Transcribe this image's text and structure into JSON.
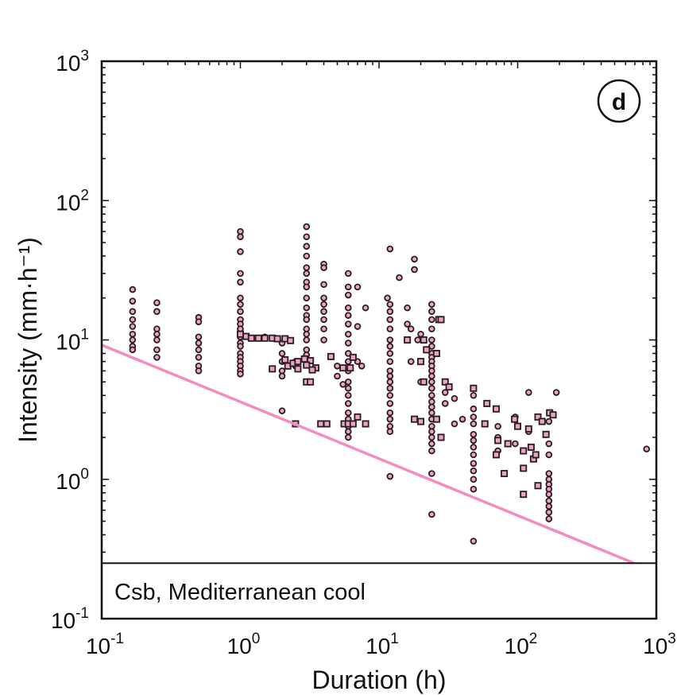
{
  "chart_data": {
    "type": "scatter",
    "x_scale": "log",
    "y_scale": "log",
    "xlim": [
      0.1,
      1000
    ],
    "ylim": [
      0.1,
      1000
    ],
    "xlabel": "Duration (h)",
    "ylabel": "Intensity (mm·h⁻¹)",
    "x_ticks": [
      {
        "value": 0.1,
        "base": "10",
        "exp": "-1"
      },
      {
        "value": 1,
        "base": "10",
        "exp": "0"
      },
      {
        "value": 10,
        "base": "10",
        "exp": "1"
      },
      {
        "value": 100,
        "base": "10",
        "exp": "2"
      },
      {
        "value": 1000,
        "base": "10",
        "exp": "3"
      }
    ],
    "y_ticks": [
      {
        "value": 0.1,
        "base": "10",
        "exp": "-1"
      },
      {
        "value": 1,
        "base": "10",
        "exp": "0"
      },
      {
        "value": 10,
        "base": "10",
        "exp": "1"
      },
      {
        "value": 100,
        "base": "10",
        "exp": "2"
      },
      {
        "value": 1000,
        "base": "10",
        "exp": "3"
      }
    ],
    "panel_label": "d",
    "inset_label": "Csb, Mediterranean cool",
    "inset_floor_y": 0.25,
    "threshold_line": {
      "color": "#f48cc0",
      "points": [
        [
          0.1,
          9.2
        ],
        [
          1000,
          0.215
        ]
      ]
    },
    "marker_fill": "#e8a6c4",
    "marker_stroke": "#2a1a22",
    "series": [
      {
        "marker": "circle",
        "points": [
          [
            0.167,
            23
          ],
          [
            0.167,
            19
          ],
          [
            0.167,
            16
          ],
          [
            0.167,
            14
          ],
          [
            0.167,
            12.5
          ],
          [
            0.167,
            11
          ],
          [
            0.167,
            10
          ],
          [
            0.167,
            9
          ],
          [
            0.167,
            8.5
          ],
          [
            0.25,
            18.5
          ],
          [
            0.25,
            16
          ],
          [
            0.25,
            12
          ],
          [
            0.25,
            11
          ],
          [
            0.25,
            10
          ],
          [
            0.25,
            8.5
          ],
          [
            0.25,
            7.5
          ],
          [
            0.5,
            14.5
          ],
          [
            0.5,
            13.5
          ],
          [
            0.5,
            10.5
          ],
          [
            0.5,
            9.5
          ],
          [
            0.5,
            8.5
          ],
          [
            0.5,
            7.5
          ],
          [
            0.5,
            6.5
          ],
          [
            0.5,
            6
          ],
          [
            1,
            60
          ],
          [
            1,
            55
          ],
          [
            1,
            43
          ],
          [
            1,
            30
          ],
          [
            1,
            26
          ],
          [
            1,
            20
          ],
          [
            1,
            18
          ],
          [
            1,
            16
          ],
          [
            1,
            14
          ],
          [
            1,
            13
          ],
          [
            1,
            12
          ],
          [
            1,
            10.5
          ],
          [
            1,
            9.5
          ],
          [
            1,
            9
          ],
          [
            1,
            8
          ],
          [
            1,
            7.5
          ],
          [
            1,
            7
          ],
          [
            1,
            6.5
          ],
          [
            1,
            6
          ],
          [
            1,
            5.7
          ],
          [
            1.5,
            10.5
          ],
          [
            1.8,
            10.2
          ],
          [
            2,
            9.5
          ],
          [
            2,
            8
          ],
          [
            2,
            7
          ],
          [
            2,
            6
          ],
          [
            2,
            5.5
          ],
          [
            2,
            3.1
          ],
          [
            2.5,
            7
          ],
          [
            2.5,
            6.5
          ],
          [
            3,
            65
          ],
          [
            3,
            55
          ],
          [
            3,
            47
          ],
          [
            3,
            40
          ],
          [
            3,
            33
          ],
          [
            3,
            30
          ],
          [
            3,
            26
          ],
          [
            3,
            24
          ],
          [
            3,
            20
          ],
          [
            3,
            17
          ],
          [
            3,
            15
          ],
          [
            3,
            14
          ],
          [
            3,
            12
          ],
          [
            3,
            11
          ],
          [
            3,
            10
          ],
          [
            3,
            8.5
          ],
          [
            3,
            7.8
          ],
          [
            4,
            35
          ],
          [
            4,
            33
          ],
          [
            4,
            25
          ],
          [
            4,
            20
          ],
          [
            4,
            18
          ],
          [
            4,
            16
          ],
          [
            4,
            14
          ],
          [
            4,
            12
          ],
          [
            4,
            10
          ],
          [
            5,
            6.5
          ],
          [
            5,
            5.5
          ],
          [
            5.5,
            4.8
          ],
          [
            6,
            30
          ],
          [
            6,
            24
          ],
          [
            6,
            21
          ],
          [
            6,
            17
          ],
          [
            6,
            15
          ],
          [
            6,
            13
          ],
          [
            6,
            11
          ],
          [
            6,
            9.5
          ],
          [
            6,
            8
          ],
          [
            6,
            7
          ],
          [
            6,
            6
          ],
          [
            6,
            5
          ],
          [
            6,
            4.5
          ],
          [
            6,
            4
          ],
          [
            6,
            3.5
          ],
          [
            6,
            3
          ],
          [
            6,
            2.7
          ],
          [
            6,
            2.4
          ],
          [
            6,
            2.2
          ],
          [
            6,
            2
          ],
          [
            7,
            24
          ],
          [
            7,
            12.5
          ],
          [
            7,
            7
          ],
          [
            7.5,
            6.5
          ],
          [
            8,
            17
          ],
          [
            12,
            45
          ],
          [
            11.5,
            20
          ],
          [
            12,
            18
          ],
          [
            12,
            16
          ],
          [
            12,
            14
          ],
          [
            12,
            12
          ],
          [
            12,
            10
          ],
          [
            12,
            9
          ],
          [
            12,
            8
          ],
          [
            12,
            7
          ],
          [
            12,
            6
          ],
          [
            12,
            5.5
          ],
          [
            12,
            5
          ],
          [
            12,
            4.5
          ],
          [
            12,
            4
          ],
          [
            12,
            3.5
          ],
          [
            12,
            3
          ],
          [
            12,
            2.7
          ],
          [
            12,
            2.4
          ],
          [
            12,
            2.2
          ],
          [
            12,
            1.05
          ],
          [
            14,
            28
          ],
          [
            16,
            17
          ],
          [
            16,
            13
          ],
          [
            17,
            12
          ],
          [
            18,
            38
          ],
          [
            18,
            32
          ],
          [
            17,
            7
          ],
          [
            19,
            10
          ],
          [
            20,
            11
          ],
          [
            20,
            5
          ],
          [
            24,
            18
          ],
          [
            24,
            16
          ],
          [
            24,
            14
          ],
          [
            24,
            12
          ],
          [
            24,
            10
          ],
          [
            24,
            9
          ],
          [
            24,
            8
          ],
          [
            24,
            7.5
          ],
          [
            24,
            7
          ],
          [
            24,
            6.5
          ],
          [
            24,
            6
          ],
          [
            24,
            5.5
          ],
          [
            24,
            5
          ],
          [
            24,
            4.5
          ],
          [
            24,
            4
          ],
          [
            24,
            3.6
          ],
          [
            24,
            3.3
          ],
          [
            24,
            3
          ],
          [
            24,
            2.7
          ],
          [
            24,
            2.4
          ],
          [
            24,
            2.2
          ],
          [
            24,
            2
          ],
          [
            24,
            1.8
          ],
          [
            24,
            1.6
          ],
          [
            24,
            1.1
          ],
          [
            24,
            0.56
          ],
          [
            30,
            4.2
          ],
          [
            30,
            3.5
          ],
          [
            35,
            3.8
          ],
          [
            40,
            2.7
          ],
          [
            35,
            2.5
          ],
          [
            48,
            4
          ],
          [
            48,
            3.2
          ],
          [
            48,
            2.8
          ],
          [
            48,
            2.5
          ],
          [
            48,
            2.1
          ],
          [
            48,
            1.9
          ],
          [
            48,
            1.7
          ],
          [
            48,
            1.5
          ],
          [
            48,
            1.3
          ],
          [
            48,
            1.15
          ],
          [
            48,
            1
          ],
          [
            48,
            0.85
          ],
          [
            48,
            0.36
          ],
          [
            72,
            2.4
          ],
          [
            72,
            2
          ],
          [
            72,
            1.6
          ],
          [
            96,
            2.8
          ],
          [
            96,
            1.8
          ],
          [
            120,
            4.2
          ],
          [
            120,
            2.2
          ],
          [
            168,
            1.1
          ],
          [
            168,
            1
          ],
          [
            168,
            0.92
          ],
          [
            168,
            0.85
          ],
          [
            168,
            0.78
          ],
          [
            168,
            0.7
          ],
          [
            168,
            0.64
          ],
          [
            168,
            0.58
          ],
          [
            168,
            0.52
          ],
          [
            168,
            1.5
          ],
          [
            168,
            1.8
          ],
          [
            168,
            2.6
          ],
          [
            190,
            4.2
          ],
          [
            850,
            1.65
          ]
        ]
      },
      {
        "marker": "square",
        "points": [
          [
            1,
            11
          ],
          [
            1.1,
            10.6
          ],
          [
            1.2,
            10.3
          ],
          [
            1.35,
            10.3
          ],
          [
            1.5,
            10.3
          ],
          [
            1.7,
            10.3
          ],
          [
            1.85,
            10.2
          ],
          [
            2.1,
            10.2
          ],
          [
            2.3,
            9.9
          ],
          [
            1.7,
            6.2
          ],
          [
            2.1,
            7.2
          ],
          [
            2.2,
            6.5
          ],
          [
            2.4,
            6.8
          ],
          [
            2.6,
            7
          ],
          [
            2.9,
            7.3
          ],
          [
            3.2,
            7.1
          ],
          [
            3.5,
            6.3
          ],
          [
            3,
            6.6
          ],
          [
            2.6,
            6.2
          ],
          [
            3.3,
            6.1
          ],
          [
            2.5,
            2.5
          ],
          [
            3,
            5
          ],
          [
            3.2,
            5
          ],
          [
            3.8,
            2.5
          ],
          [
            4.2,
            2.5
          ],
          [
            4.5,
            7.6
          ],
          [
            5.5,
            6.3
          ],
          [
            6.2,
            6.3
          ],
          [
            5.6,
            2.5
          ],
          [
            6,
            2.5
          ],
          [
            6.5,
            2.5
          ],
          [
            7,
            2.8
          ],
          [
            8,
            2.5
          ],
          [
            6.5,
            7.5
          ],
          [
            20,
            7
          ],
          [
            21,
            5
          ],
          [
            16,
            10
          ],
          [
            21,
            10
          ],
          [
            22,
            8.5
          ],
          [
            26,
            8
          ],
          [
            27,
            14
          ],
          [
            28,
            14
          ],
          [
            30,
            5
          ],
          [
            32,
            4.6
          ],
          [
            18,
            2.7
          ],
          [
            20,
            2.6
          ],
          [
            26,
            2.7
          ],
          [
            28,
            2
          ],
          [
            48,
            4.5
          ],
          [
            58,
            2.5
          ],
          [
            60,
            3.5
          ],
          [
            70,
            3.2
          ],
          [
            72,
            1.9
          ],
          [
            70,
            1.5
          ],
          [
            85,
            1.8
          ],
          [
            95,
            2.7
          ],
          [
            100,
            2.4
          ],
          [
            80,
            1.1
          ],
          [
            110,
            1.2
          ],
          [
            120,
            2.3
          ],
          [
            125,
            1.7
          ],
          [
            130,
            1.4
          ],
          [
            135,
            1.5
          ],
          [
            140,
            2.8
          ],
          [
            150,
            2.6
          ],
          [
            160,
            2.1
          ],
          [
            170,
            3
          ],
          [
            180,
            2.9
          ],
          [
            110,
            0.78
          ],
          [
            140,
            0.9
          ],
          [
            110,
            1.6
          ]
        ]
      }
    ]
  }
}
